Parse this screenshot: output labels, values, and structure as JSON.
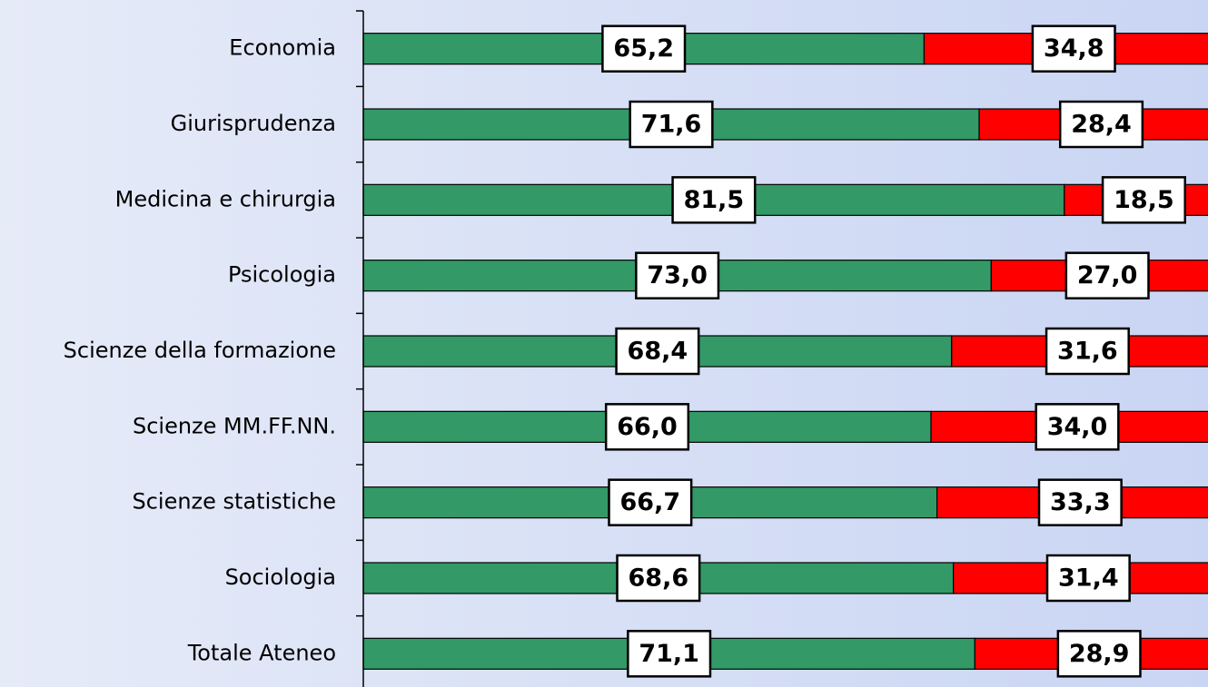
{
  "chart_data": {
    "type": "stacked-bar-horizontal",
    "categories": [
      "Economia",
      "Giurisprudenza",
      "Medicina e chirurgia",
      "Psicologia",
      "Scienze della formazione",
      "Scienze MM.FF.NN.",
      "Scienze statistiche",
      "Sociologia",
      "Totale Ateneo"
    ],
    "series": [
      {
        "color": "#339966",
        "values": [
          65.2,
          71.6,
          81.5,
          73.0,
          68.4,
          66.0,
          66.7,
          68.6,
          71.1
        ],
        "value_labels": [
          "65,2",
          "71,6",
          "81,5",
          "73,0",
          "68,4",
          "66,0",
          "66,7",
          "68,6",
          "71,1"
        ]
      },
      {
        "color": "#ff0000",
        "values": [
          34.8,
          28.4,
          18.5,
          27.0,
          31.6,
          34.0,
          33.3,
          31.4,
          28.9
        ],
        "value_labels": [
          "34,8",
          "28,4",
          "18,5",
          "27,0",
          "31,6",
          "34,0",
          "33,3",
          "31,4",
          "28,9"
        ]
      }
    ],
    "xlim": [
      0,
      100
    ]
  }
}
